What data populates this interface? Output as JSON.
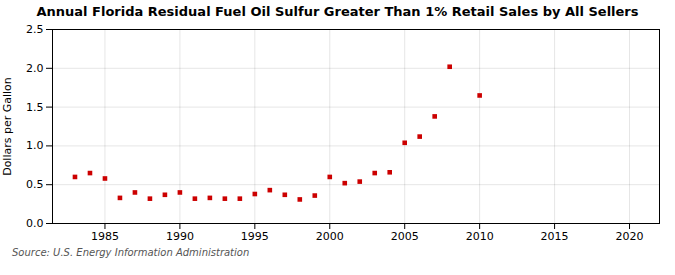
{
  "chart_data": {
    "type": "scatter",
    "title": "Annual Florida Residual Fuel Oil Sulfur Greater Than 1% Retail Sales by All Sellers",
    "ylabel": "Dollars per Gallon",
    "source": "Source: U.S. Energy Information Administration",
    "x": [
      1983,
      1984,
      1985,
      1986,
      1987,
      1988,
      1989,
      1990,
      1991,
      1992,
      1993,
      1994,
      1995,
      1996,
      1997,
      1998,
      1999,
      2000,
      2001,
      2002,
      2003,
      2004,
      2005,
      2006,
      2007,
      2008,
      2010
    ],
    "values": [
      0.6,
      0.65,
      0.58,
      0.33,
      0.4,
      0.32,
      0.37,
      0.4,
      0.32,
      0.33,
      0.32,
      0.32,
      0.38,
      0.43,
      0.37,
      0.31,
      0.36,
      0.6,
      0.52,
      0.54,
      0.65,
      0.66,
      1.04,
      1.12,
      1.38,
      2.02,
      1.65
    ],
    "color": "#cc0000",
    "marker": "square",
    "xlim": [
      1981.5,
      2022
    ],
    "xticks": [
      1985,
      1990,
      1995,
      2000,
      2005,
      2010,
      2015,
      2020
    ],
    "ylim": [
      0.0,
      2.5
    ],
    "yticks": [
      {
        "value": 0.0,
        "label": "0.0"
      },
      0.5,
      {
        "value": 1.0,
        "label": "1.0"
      },
      1.5,
      {
        "value": 2.0,
        "label": "2.0"
      },
      2.5
    ],
    "grid": true
  }
}
